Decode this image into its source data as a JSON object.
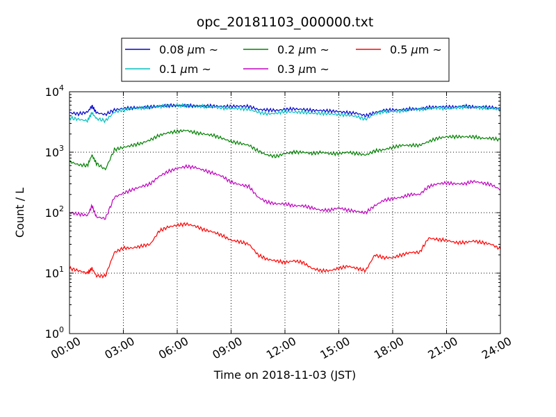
{
  "chart_data": {
    "type": "line",
    "title": "opc_20181103_000000.txt",
    "xlabel": "Time on 2018-11-03 (JST)",
    "ylabel": "Count / L",
    "xlim": [
      "00:00",
      "24:00"
    ],
    "ylim": [
      1,
      10000
    ],
    "y_scale": "log",
    "grid": true,
    "legend_position": "top-center",
    "x_ticks": [
      "00:00",
      "03:00",
      "06:00",
      "09:00",
      "12:00",
      "15:00",
      "18:00",
      "21:00",
      "24:00"
    ],
    "y_ticks": [
      {
        "value": 1,
        "base": "10",
        "exp": "0"
      },
      {
        "value": 10,
        "base": "10",
        "exp": "1"
      },
      {
        "value": 100,
        "base": "10",
        "exp": "2"
      },
      {
        "value": 1000,
        "base": "10",
        "exp": "3"
      },
      {
        "value": 10000,
        "base": "10",
        "exp": "4"
      }
    ],
    "x": [
      "00:00",
      "00:30",
      "01:00",
      "01:15",
      "01:30",
      "02:00",
      "02:30",
      "03:00",
      "03:30",
      "04:00",
      "04:30",
      "05:00",
      "05:30",
      "06:00",
      "06:30",
      "07:00",
      "07:30",
      "08:00",
      "08:30",
      "09:00",
      "09:30",
      "10:00",
      "10:30",
      "11:00",
      "11:30",
      "12:00",
      "12:30",
      "13:00",
      "13:30",
      "14:00",
      "14:30",
      "15:00",
      "15:30",
      "16:00",
      "16:30",
      "17:00",
      "17:30",
      "18:00",
      "18:30",
      "19:00",
      "19:30",
      "20:00",
      "20:30",
      "21:00",
      "21:30",
      "22:00",
      "22:30",
      "23:00",
      "23:30",
      "24:00"
    ],
    "series": [
      {
        "name_prefix": "0.08 ",
        "name_suffix": "m ~",
        "name_unit": "μ",
        "color": "#0000cc",
        "values": [
          4500,
          4300,
          4600,
          5800,
          4500,
          4200,
          5000,
          5300,
          5400,
          5500,
          5600,
          5800,
          5900,
          5900,
          5900,
          5800,
          5800,
          5800,
          5700,
          5700,
          5800,
          5700,
          5100,
          5000,
          4900,
          5100,
          5200,
          5100,
          4900,
          4900,
          4800,
          4700,
          4500,
          4400,
          4000,
          4500,
          4900,
          5000,
          5000,
          5200,
          5200,
          5500,
          5600,
          5600,
          5600,
          5800,
          5600,
          5600,
          5500,
          5300
        ]
      },
      {
        "name_prefix": "0.1 ",
        "name_suffix": "m ~",
        "name_unit": "μ",
        "color": "#00bfbf",
        "values": [
          3700,
          3500,
          3300,
          4500,
          3600,
          3300,
          4600,
          5000,
          5300,
          5400,
          5500,
          5700,
          5900,
          5900,
          5900,
          5800,
          5700,
          5600,
          5400,
          5300,
          5300,
          5100,
          4600,
          4300,
          4400,
          4700,
          4600,
          4600,
          4400,
          4400,
          4300,
          4200,
          4100,
          3900,
          3500,
          4300,
          4700,
          4700,
          4800,
          5100,
          5100,
          5300,
          5400,
          5300,
          5400,
          5600,
          5500,
          5400,
          5300,
          5100
        ]
      },
      {
        "name_prefix": "0.2 ",
        "name_suffix": "m ~",
        "name_unit": "μ",
        "color": "#008000",
        "values": [
          700,
          620,
          600,
          900,
          650,
          520,
          1100,
          1200,
          1300,
          1400,
          1600,
          1900,
          2100,
          2200,
          2300,
          2100,
          2000,
          1900,
          1700,
          1500,
          1400,
          1300,
          1050,
          900,
          850,
          950,
          1000,
          1000,
          950,
          1000,
          950,
          950,
          1000,
          950,
          900,
          1050,
          1100,
          1200,
          1300,
          1300,
          1300,
          1500,
          1700,
          1800,
          1800,
          1800,
          1800,
          1700,
          1700,
          1600
        ]
      },
      {
        "name_prefix": "0.3 ",
        "name_suffix": "m ~",
        "name_unit": "μ",
        "color": "#bf00bf",
        "values": [
          100,
          95,
          90,
          130,
          85,
          80,
          180,
          210,
          240,
          270,
          300,
          400,
          480,
          540,
          580,
          560,
          500,
          450,
          400,
          320,
          290,
          270,
          180,
          150,
          140,
          140,
          130,
          130,
          120,
          110,
          110,
          120,
          110,
          105,
          100,
          130,
          160,
          170,
          180,
          200,
          200,
          270,
          300,
          310,
          300,
          300,
          330,
          310,
          290,
          240
        ]
      },
      {
        "name_prefix": "0.5 ",
        "name_suffix": "m ~",
        "name_unit": "μ",
        "color": "#ff0000",
        "values": [
          12,
          11,
          10,
          12,
          9,
          9,
          22,
          26,
          26,
          28,
          30,
          50,
          58,
          62,
          65,
          60,
          52,
          48,
          42,
          35,
          33,
          30,
          20,
          17,
          16,
          15,
          16,
          15,
          12,
          11,
          11,
          12,
          13,
          12,
          11,
          20,
          18,
          18,
          20,
          22,
          22,
          38,
          36,
          35,
          32,
          32,
          34,
          32,
          30,
          25
        ]
      }
    ]
  }
}
